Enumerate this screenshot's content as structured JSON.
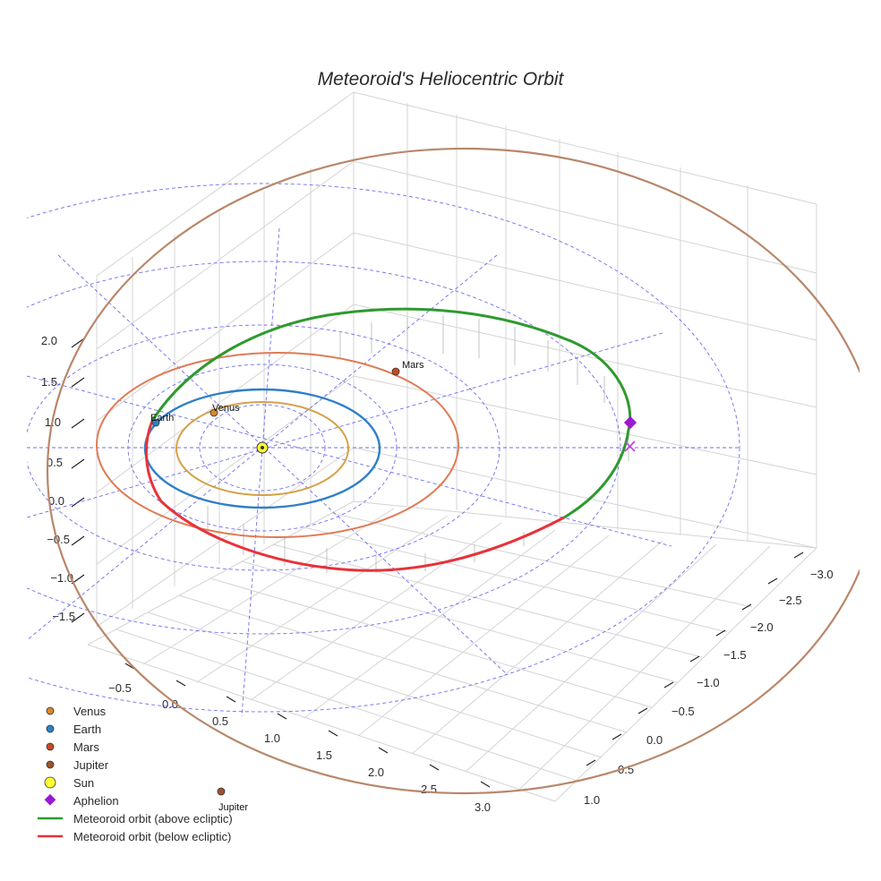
{
  "chart_data": {
    "type": "scatter3d",
    "title": "Meteoroid's Heliocentric Orbit",
    "axes": {
      "x_ticks": [
        "−0.5",
        "0.0",
        "0.5",
        "1.0",
        "1.5",
        "2.0",
        "2.5",
        "3.0"
      ],
      "y_ticks": [
        "−3.0",
        "−2.5",
        "−2.0",
        "−1.5",
        "−1.0",
        "−0.5",
        "0.0",
        "0.5",
        "1.0"
      ],
      "z_ticks": [
        "2.0",
        "1.5",
        "1.0",
        "0.5",
        "0.0",
        "−0.5",
        "−1.0",
        "−1.5"
      ]
    },
    "planets": [
      {
        "name": "Venus",
        "color": "#d6a24a",
        "orbit_radius_au": 0.72
      },
      {
        "name": "Earth",
        "color": "#2f7fc8",
        "orbit_radius_au": 1.0
      },
      {
        "name": "Mars",
        "color": "#e07b55",
        "orbit_radius_au": 1.52
      },
      {
        "name": "Jupiter",
        "color": "#b8876a",
        "orbit_radius_au": 5.2
      }
    ],
    "sun": {
      "label": "Sun",
      "color": "#ffff33"
    },
    "aphelion": {
      "label": "Aphelion",
      "color": "#9b19d0"
    },
    "meteoroid_orbit": [
      {
        "name": "Meteoroid orbit (above ecliptic)",
        "color": "#2e9a2e"
      },
      {
        "name": "Meteoroid orbit (below ecliptic)",
        "color": "#e8323a"
      }
    ],
    "legend": {
      "position": "bottom-left",
      "items": [
        "Venus",
        "Earth",
        "Mars",
        "Jupiter",
        "Sun",
        "Aphelion",
        "Meteoroid orbit (above ecliptic)",
        "Meteoroid orbit (below ecliptic)"
      ]
    }
  }
}
